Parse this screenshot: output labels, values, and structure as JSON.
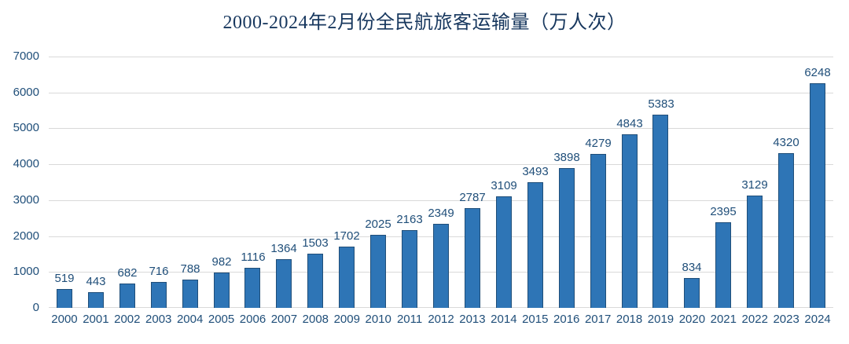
{
  "chart_data": {
    "type": "bar",
    "title": "2000-2024年2月份全民航旅客运输量（万人次）",
    "xlabel": "",
    "ylabel": "",
    "categories": [
      "2000",
      "2001",
      "2002",
      "2003",
      "2004",
      "2005",
      "2006",
      "2007",
      "2008",
      "2009",
      "2010",
      "2011",
      "2012",
      "2013",
      "2014",
      "2015",
      "2016",
      "2017",
      "2018",
      "2019",
      "2020",
      "2021",
      "2022",
      "2023",
      "2024"
    ],
    "values": [
      519,
      443,
      682,
      716,
      788,
      982,
      1116,
      1364,
      1503,
      1702,
      2025,
      2163,
      2349,
      2787,
      3109,
      3493,
      3898,
      4279,
      4843,
      5383,
      834,
      2395,
      3129,
      4320,
      6248
    ],
    "ylim": [
      0,
      7000
    ],
    "yticks": [
      0,
      1000,
      2000,
      3000,
      4000,
      5000,
      6000,
      7000
    ],
    "grid": "horizontal-on",
    "legend_position": "none",
    "data_labels": "above-bars",
    "colors": {
      "bar_fill": "#2E75B6",
      "bar_border": "#1F4E79",
      "value_label": "#1F4E79",
      "axis_label": "#1F4E79",
      "title": "#17375E",
      "gridline": "#D9D9D9",
      "background": "#FFFFFF"
    }
  }
}
